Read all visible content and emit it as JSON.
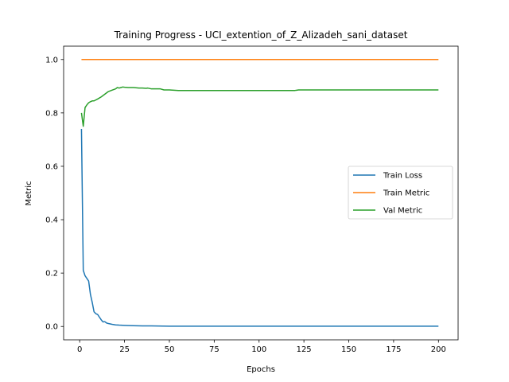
{
  "chart_data": {
    "type": "line",
    "title": "Training Progress - UCI_extention_of_Z_Alizadeh_sani_dataset",
    "xlabel": "Epochs",
    "ylabel": "Metric",
    "xlim": [
      -8.95,
      210.95
    ],
    "ylim": [
      -0.05,
      1.05
    ],
    "xticks": [
      0,
      25,
      50,
      75,
      100,
      125,
      150,
      175,
      200
    ],
    "yticks": [
      0.0,
      0.2,
      0.4,
      0.6,
      0.8,
      1.0
    ],
    "ytick_labels": [
      "0.0",
      "0.2",
      "0.4",
      "0.6",
      "0.8",
      "1.0"
    ],
    "grid": false,
    "legend_position": "center-right",
    "series": [
      {
        "name": "Train Loss",
        "color": "#1f77b4",
        "x": [
          1,
          2,
          3,
          4,
          5,
          6,
          7,
          8,
          9,
          10,
          11,
          12,
          13,
          14,
          15,
          16,
          18,
          20,
          22,
          25,
          30,
          35,
          40,
          50,
          60,
          80,
          100,
          125,
          150,
          175,
          200
        ],
        "y": [
          0.74,
          0.21,
          0.19,
          0.18,
          0.17,
          0.12,
          0.09,
          0.055,
          0.048,
          0.045,
          0.035,
          0.025,
          0.017,
          0.018,
          0.013,
          0.011,
          0.008,
          0.006,
          0.005,
          0.004,
          0.003,
          0.002,
          0.002,
          0.001,
          0.001,
          0.001,
          0.001,
          0.001,
          0.001,
          0.001,
          0.001
        ]
      },
      {
        "name": "Train Metric",
        "color": "#ff7f0e",
        "x": [
          1,
          200
        ],
        "y": [
          1.0,
          1.0
        ]
      },
      {
        "name": "Val Metric",
        "color": "#2ca02c",
        "x": [
          1,
          2,
          3,
          4,
          5,
          6,
          7,
          8,
          10,
          12,
          14,
          16,
          18,
          20,
          21,
          22,
          23,
          24,
          25,
          27,
          30,
          33,
          35,
          37,
          38,
          40,
          45,
          47,
          50,
          55,
          60,
          80,
          100,
          120,
          121,
          122,
          150,
          175,
          200
        ],
        "y": [
          0.8,
          0.75,
          0.82,
          0.83,
          0.838,
          0.842,
          0.845,
          0.845,
          0.852,
          0.86,
          0.87,
          0.88,
          0.885,
          0.89,
          0.895,
          0.893,
          0.895,
          0.897,
          0.896,
          0.895,
          0.895,
          0.893,
          0.893,
          0.892,
          0.893,
          0.89,
          0.89,
          0.886,
          0.886,
          0.884,
          0.884,
          0.884,
          0.884,
          0.884,
          0.885,
          0.886,
          0.886,
          0.886,
          0.886
        ]
      }
    ]
  }
}
